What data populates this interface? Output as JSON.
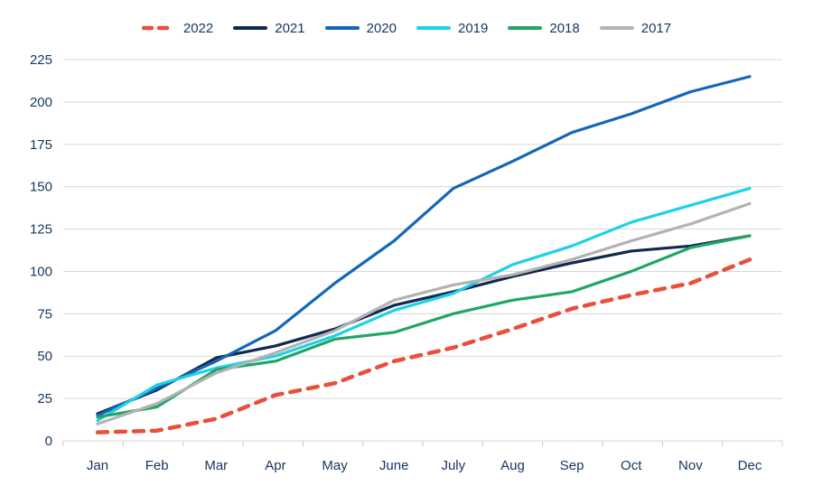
{
  "chart_data": {
    "type": "line",
    "title": "",
    "xlabel": "",
    "ylabel": "",
    "ylim": [
      0,
      225
    ],
    "y_ticks": [
      0,
      25,
      50,
      75,
      100,
      125,
      150,
      175,
      200,
      225
    ],
    "grid": true,
    "legend_position": "top",
    "categories": [
      "Jan",
      "Feb",
      "Mar",
      "Apr",
      "May",
      "June",
      "July",
      "Aug",
      "Sep",
      "Oct",
      "Nov",
      "Dec"
    ],
    "series": [
      {
        "name": "2022",
        "color": "#e8503a",
        "dashed": true,
        "values": [
          5,
          6,
          13,
          27,
          34,
          47,
          55,
          66,
          78,
          86,
          93,
          107
        ]
      },
      {
        "name": "2021",
        "color": "#0f2a4f",
        "dashed": false,
        "values": [
          16,
          30,
          49,
          56,
          66,
          80,
          88,
          97,
          105,
          112,
          115,
          121
        ]
      },
      {
        "name": "2020",
        "color": "#1467b8",
        "dashed": false,
        "values": [
          15,
          31,
          47,
          65,
          93,
          118,
          149,
          165,
          182,
          193,
          206,
          215
        ]
      },
      {
        "name": "2019",
        "color": "#1ed1e6",
        "dashed": false,
        "values": [
          12,
          33,
          43,
          50,
          62,
          77,
          87,
          104,
          115,
          129,
          139,
          149
        ]
      },
      {
        "name": "2018",
        "color": "#21a567",
        "dashed": false,
        "values": [
          14,
          20,
          42,
          47,
          60,
          64,
          75,
          83,
          88,
          100,
          114,
          121
        ]
      },
      {
        "name": "2017",
        "color": "#b3b3b3",
        "dashed": false,
        "values": [
          10,
          22,
          40,
          52,
          65,
          83,
          92,
          98,
          107,
          118,
          128,
          140
        ]
      }
    ],
    "colors": {
      "gridline": "#d8d8d8",
      "axis_text": "#16355e",
      "tick": "#c9c9c9"
    }
  }
}
